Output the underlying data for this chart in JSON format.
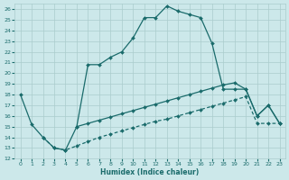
{
  "xlabel": "Humidex (Indice chaleur)",
  "bg_color": "#cce8ea",
  "grid_color": "#aacccc",
  "line_color": "#1a6b6b",
  "xlim": [
    -0.5,
    23.5
  ],
  "ylim": [
    12,
    26.5
  ],
  "yticks": [
    12,
    13,
    14,
    15,
    16,
    17,
    18,
    19,
    20,
    21,
    22,
    23,
    24,
    25,
    26
  ],
  "xticks": [
    0,
    1,
    2,
    3,
    4,
    5,
    6,
    7,
    8,
    9,
    10,
    11,
    12,
    13,
    14,
    15,
    16,
    17,
    18,
    19,
    20,
    21,
    22,
    23
  ],
  "line1_x": [
    0,
    1,
    2,
    3,
    4,
    5,
    6,
    7,
    8,
    9,
    10,
    11,
    12,
    13,
    14,
    15,
    16,
    17,
    18,
    19,
    20,
    21,
    22,
    23
  ],
  "line1_y": [
    18.0,
    15.2,
    14.0,
    13.0,
    12.8,
    15.0,
    20.8,
    20.8,
    21.5,
    22.0,
    23.3,
    25.2,
    25.2,
    26.3,
    25.8,
    25.5,
    25.2,
    22.8,
    18.5,
    18.5,
    18.5,
    16.0,
    17.0,
    15.3
  ],
  "line2_x": [
    2,
    3,
    4,
    5,
    6,
    7,
    8,
    9,
    10,
    11,
    12,
    13,
    14,
    15,
    16,
    17,
    18,
    19,
    20,
    21,
    22,
    23
  ],
  "line2_y": [
    14.0,
    13.0,
    12.8,
    13.2,
    13.6,
    14.0,
    14.3,
    14.6,
    14.9,
    15.2,
    15.5,
    15.7,
    16.0,
    16.3,
    16.6,
    16.9,
    17.2,
    17.5,
    17.8,
    15.3,
    15.3,
    15.3
  ],
  "line3_x": [
    5,
    6,
    7,
    8,
    9,
    10,
    11,
    12,
    13,
    14,
    15,
    16,
    17,
    18,
    19,
    20,
    21,
    22,
    23
  ],
  "line3_y": [
    15.0,
    15.3,
    15.6,
    15.9,
    16.2,
    16.5,
    16.8,
    17.1,
    17.4,
    17.7,
    18.0,
    18.3,
    18.6,
    18.9,
    19.1,
    18.5,
    16.0,
    17.0,
    15.3
  ]
}
